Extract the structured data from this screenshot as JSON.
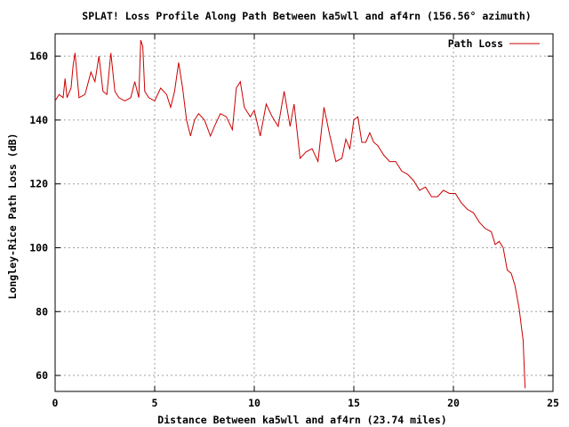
{
  "chart_data": {
    "type": "line",
    "title": "SPLAT! Loss Profile Along Path Between ka5wll and af4rn (156.56° azimuth)",
    "xlabel": "Distance Between ka5wll and af4rn (23.74 miles)",
    "ylabel": "Longley-Rice Path Loss (dB)",
    "xlim": [
      0,
      25
    ],
    "ylim": [
      55,
      167
    ],
    "x_ticks": [
      0,
      5,
      10,
      15,
      20,
      25
    ],
    "y_ticks": [
      60,
      80,
      100,
      120,
      140,
      160
    ],
    "grid": true,
    "legend_position": "top-right",
    "series": [
      {
        "name": "Path Loss",
        "color": "#cc0000",
        "x": [
          0.0,
          0.2,
          0.4,
          0.5,
          0.6,
          0.8,
          0.9,
          1.0,
          1.2,
          1.5,
          1.8,
          2.0,
          2.2,
          2.4,
          2.6,
          2.8,
          3.0,
          3.2,
          3.5,
          3.8,
          4.0,
          4.2,
          4.3,
          4.4,
          4.5,
          4.7,
          5.0,
          5.3,
          5.6,
          5.8,
          6.0,
          6.2,
          6.4,
          6.6,
          6.8,
          7.0,
          7.2,
          7.5,
          7.8,
          8.0,
          8.3,
          8.6,
          8.9,
          9.1,
          9.3,
          9.5,
          9.8,
          10.0,
          10.3,
          10.6,
          10.9,
          11.2,
          11.5,
          11.8,
          12.0,
          12.3,
          12.6,
          12.9,
          13.2,
          13.5,
          13.8,
          14.1,
          14.4,
          14.6,
          14.8,
          15.0,
          15.2,
          15.4,
          15.6,
          15.8,
          16.0,
          16.2,
          16.5,
          16.8,
          17.1,
          17.4,
          17.7,
          18.0,
          18.3,
          18.6,
          18.9,
          19.2,
          19.5,
          19.8,
          20.1,
          20.4,
          20.7,
          21.0,
          21.3,
          21.6,
          21.9,
          22.1,
          22.3,
          22.5,
          22.7,
          22.9,
          23.1,
          23.3,
          23.5,
          23.6
        ],
        "values": [
          146,
          148,
          147,
          153,
          147,
          150,
          157,
          161,
          147,
          148,
          155,
          152,
          160,
          149,
          148,
          161,
          149,
          147,
          146,
          147,
          152,
          147,
          165,
          163,
          149,
          147,
          146,
          150,
          148,
          144,
          149,
          158,
          150,
          140,
          135,
          140,
          142,
          140,
          135,
          138,
          142,
          141,
          137,
          150,
          152,
          144,
          141,
          143,
          135,
          145,
          141,
          138,
          149,
          138,
          145,
          128,
          130,
          131,
          127,
          144,
          135,
          127,
          128,
          134,
          131,
          140,
          141,
          133,
          133,
          136,
          133,
          132,
          129,
          127,
          127,
          124,
          123,
          121,
          118,
          119,
          116,
          116,
          118,
          117,
          117,
          114,
          112,
          111,
          108,
          106,
          105,
          101,
          102,
          100,
          93,
          92,
          88,
          81,
          71,
          56
        ]
      }
    ]
  }
}
